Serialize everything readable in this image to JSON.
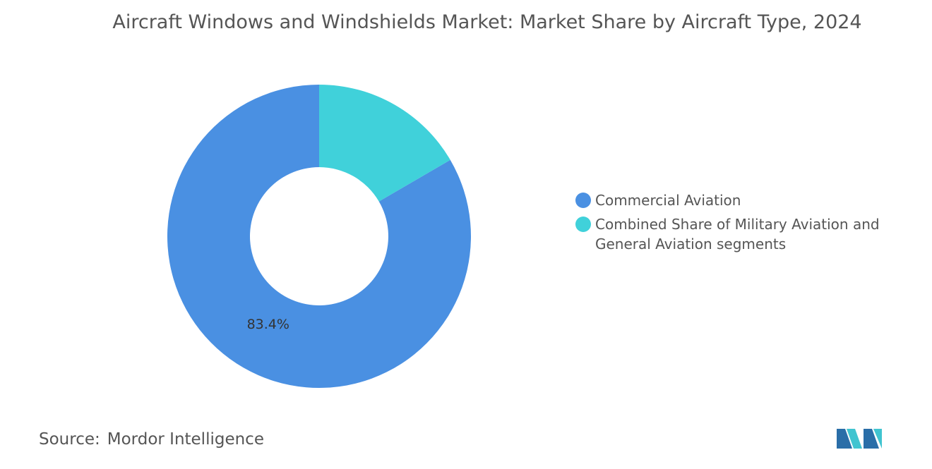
{
  "chart_data": {
    "type": "donut",
    "title": "Aircraft Windows and Windshields Market: Market Share by Aircraft Type, 2024",
    "categories": [
      "Commercial Aviation",
      "Combined Share of Military Aviation and General Aviation segments"
    ],
    "values": [
      83.4,
      16.6
    ],
    "value_labels": [
      "83.4%",
      null
    ],
    "colors": [
      "#4a90e2",
      "#40d1da"
    ],
    "source_label": "Source:",
    "source": "Mordor Intelligence"
  }
}
